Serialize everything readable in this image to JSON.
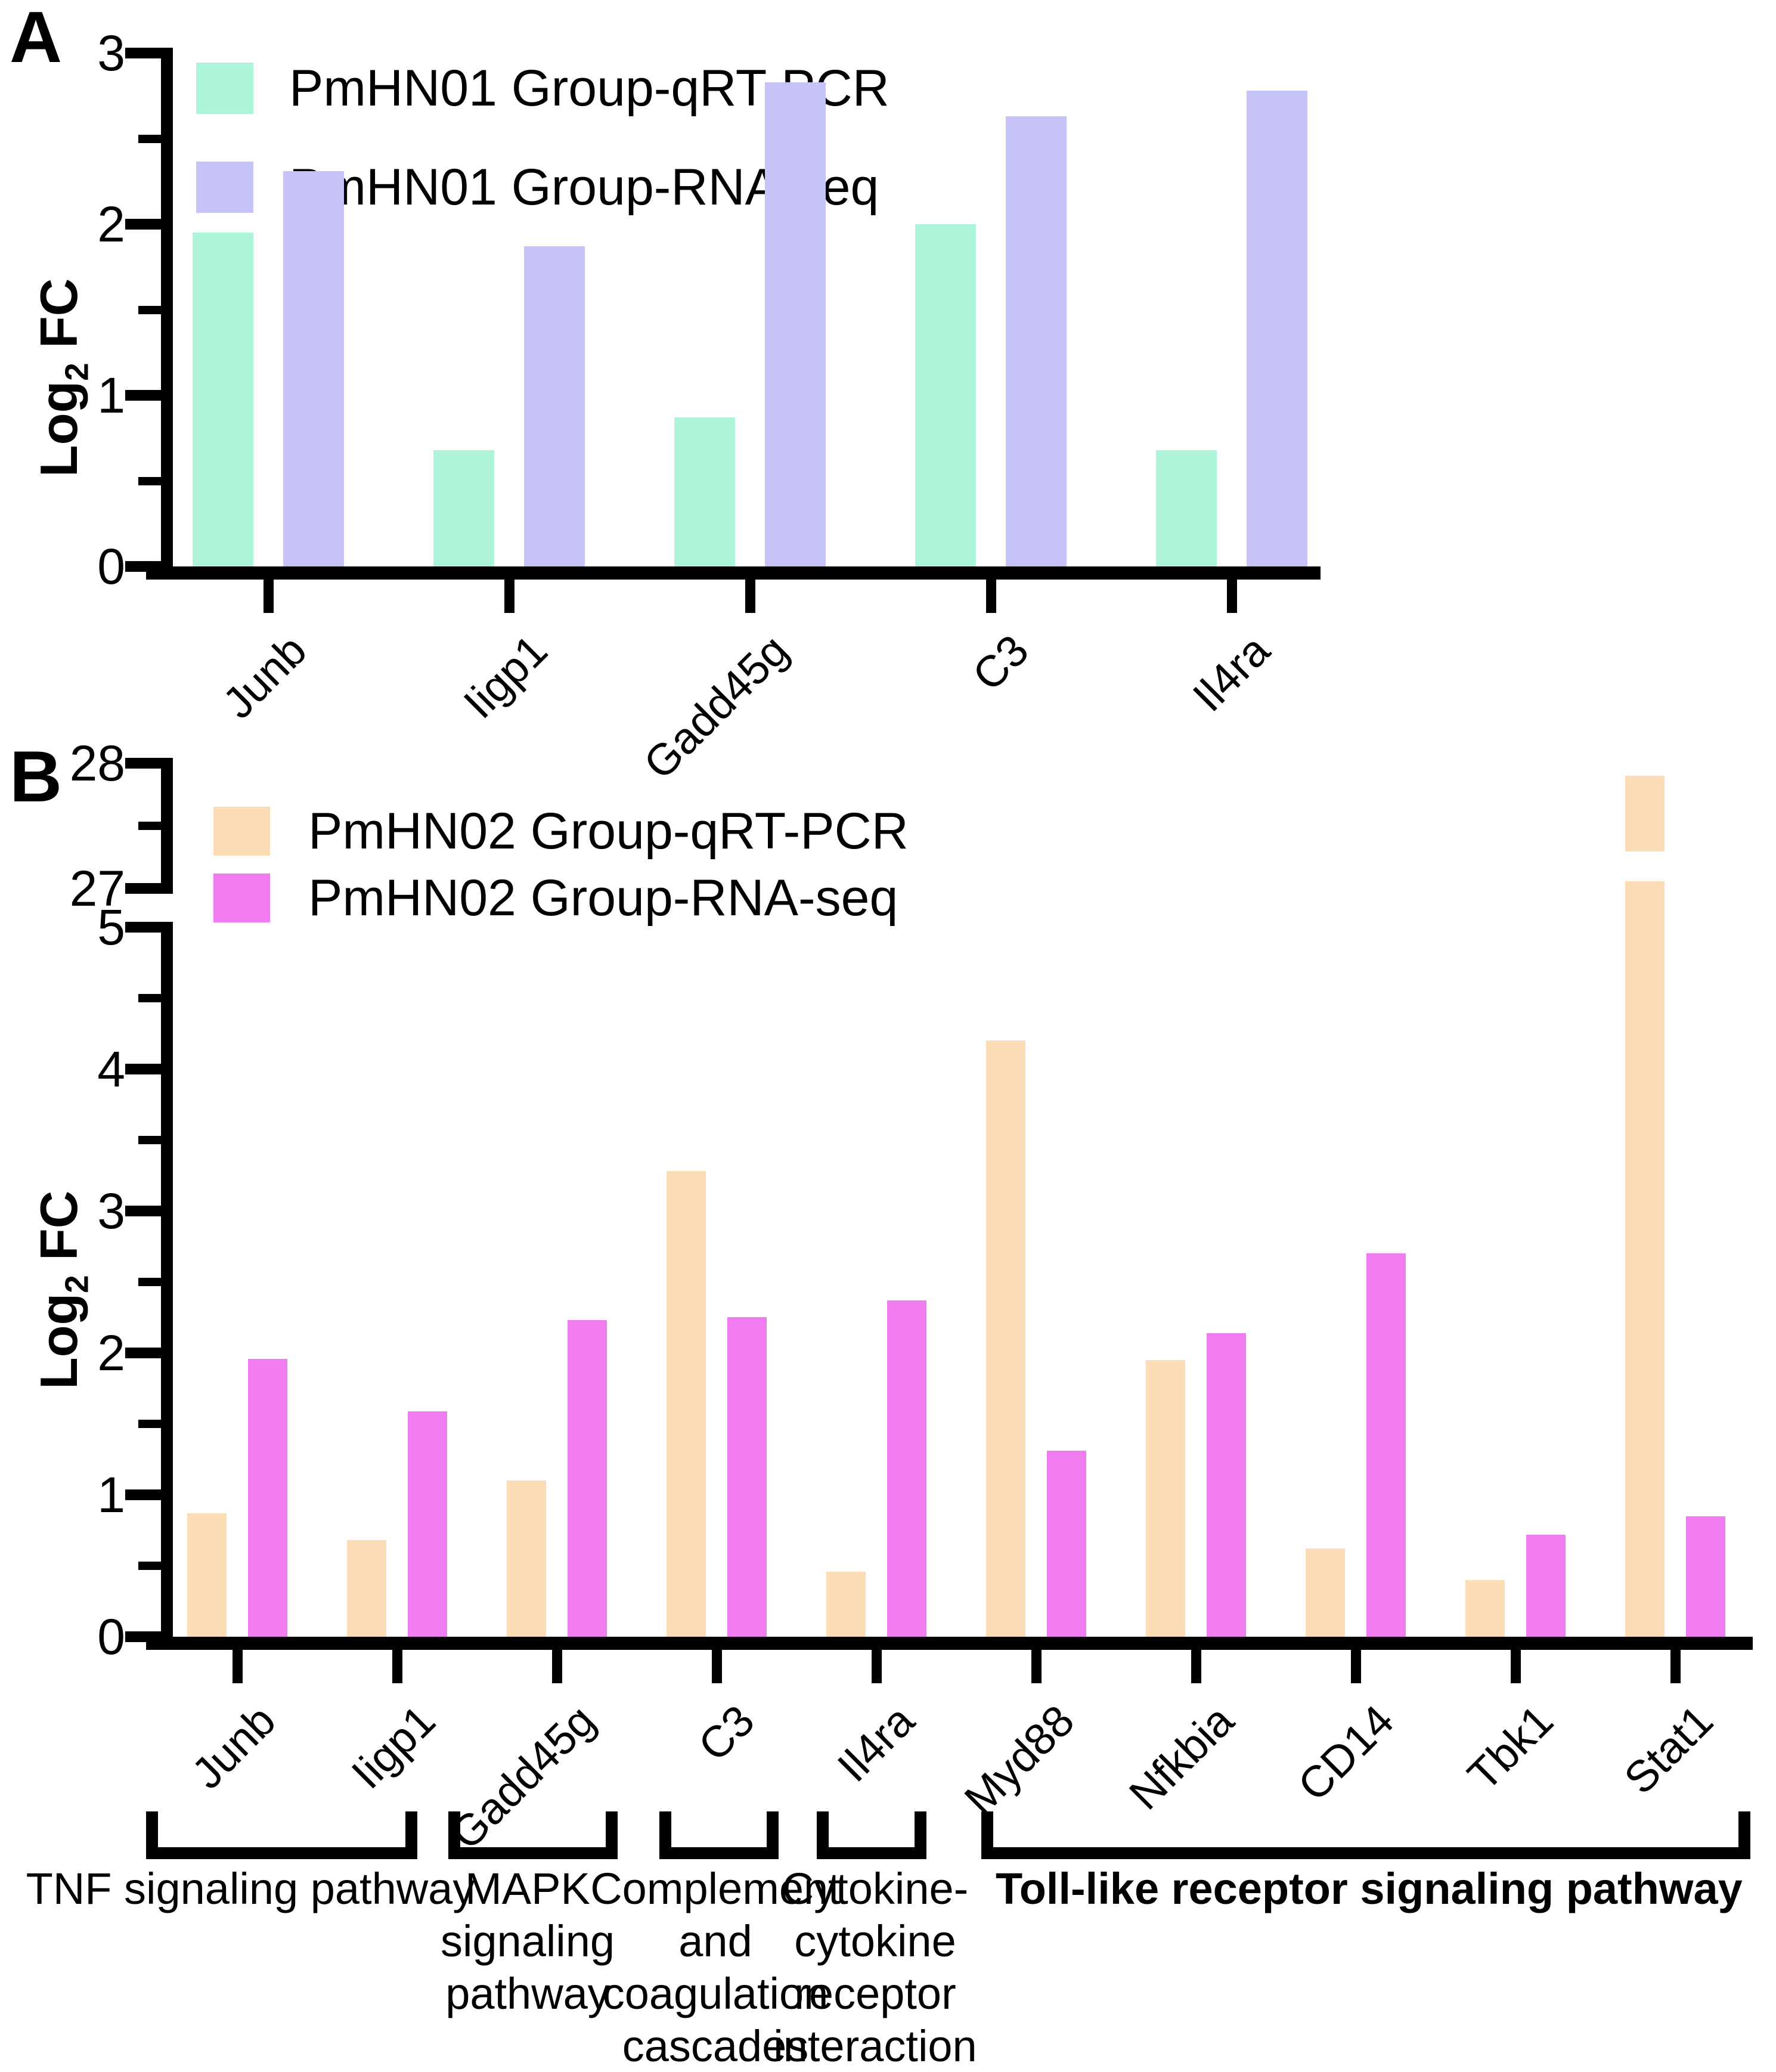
{
  "figure": {
    "panels": [
      "A",
      "B"
    ]
  },
  "chart_data": [
    {
      "panel": "A",
      "type": "bar",
      "categories": [
        "Junb",
        "Iigp1",
        "Gadd45g",
        "C3",
        "Il4ra"
      ],
      "series": [
        {
          "name": "PmHN01 Group-qRT-PCR",
          "color": "#adf4d8",
          "values": [
            1.95,
            0.68,
            0.87,
            2.0,
            0.68
          ]
        },
        {
          "name": "PmHN01 Group-RNA-seq",
          "color": "#c5c3f7",
          "values": [
            2.31,
            1.87,
            2.83,
            2.63,
            2.78
          ]
        }
      ],
      "ylabel": "Log2 FC",
      "y_label_parts": {
        "pre": "Log",
        "sub": "2",
        "post": " FC"
      },
      "ylim": [
        0,
        3
      ],
      "y_major_ticks": [
        3,
        2,
        1,
        0
      ],
      "y_minor_ticks": [
        2.5,
        1.5,
        0.5
      ],
      "legend_position": "top-left",
      "grid": false
    },
    {
      "panel": "B",
      "type": "bar",
      "categories": [
        "Junb",
        "Iigp1",
        "Gadd45g",
        "C3",
        "Il4ra",
        "Myd88",
        "Nfkbia",
        "CD14",
        "Tbk1",
        "Stat1"
      ],
      "series": [
        {
          "name": "PmHN02 Group-qRT-PCR",
          "color": "#fcdcb6",
          "values": [
            0.87,
            0.68,
            1.1,
            3.28,
            0.46,
            4.2,
            1.95,
            0.62,
            0.4,
            27.9
          ]
        },
        {
          "name": "PmHN02 Group-RNA-seq",
          "color": "#f07cf0",
          "values": [
            1.96,
            1.59,
            2.23,
            2.25,
            2.37,
            1.31,
            2.14,
            2.7,
            0.72,
            0.85
          ]
        }
      ],
      "ylabel": "Log2 FC",
      "y_label_parts": {
        "pre": "Log",
        "sub": "2",
        "post": " FC"
      },
      "axis_break": {
        "lower_range": [
          0,
          5
        ],
        "upper_range": [
          27,
          28
        ],
        "lower_major_ticks": [
          5,
          4,
          3,
          2,
          1,
          0
        ],
        "lower_minor_ticks": [
          4.5,
          3.5,
          2.5,
          1.5,
          0.5
        ],
        "upper_major_ticks": [
          28,
          27
        ],
        "upper_minor_ticks": [
          27.5
        ]
      },
      "legend_position": "top-left",
      "grid": false,
      "pathway_groups": [
        {
          "label": "TNF signaling pathway",
          "lines": [
            "TNF signaling pathway"
          ],
          "genes": [
            "Junb",
            "Iigp1"
          ],
          "bold": false
        },
        {
          "label": "MAPK signaling pathway",
          "lines": [
            "MAPK",
            "signaling",
            "pathway"
          ],
          "genes": [
            "Gadd45g"
          ],
          "bold": false
        },
        {
          "label": "Complement and coagulation cascades",
          "lines": [
            "Complement",
            "and",
            "coagulation",
            "cascades"
          ],
          "genes": [
            "C3"
          ],
          "bold": false
        },
        {
          "label": "Cytokine-cytokine receptor interaction",
          "lines": [
            "Cytokine-",
            "cytokine",
            "receptor",
            "interaction"
          ],
          "genes": [
            "Il4ra"
          ],
          "bold": false
        },
        {
          "label": "Toll-like receptor signaling pathway",
          "lines": [
            "Toll-like receptor signaling pathway"
          ],
          "genes": [
            "Myd88",
            "Nfkbia",
            "CD14",
            "Tbk1",
            "Stat1"
          ],
          "bold": true
        }
      ]
    }
  ]
}
